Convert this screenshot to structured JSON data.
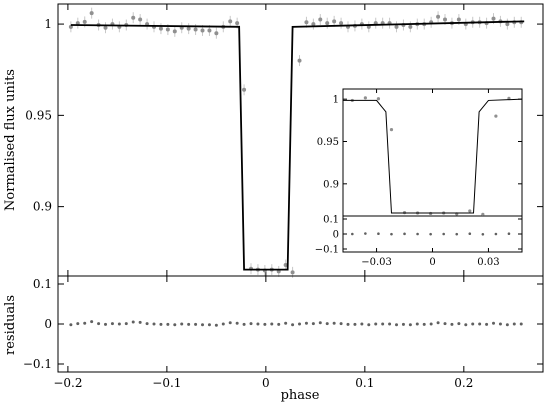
{
  "chart_data": [
    {
      "id": "main",
      "type": "scatter",
      "ylabel": "Normalised flux units",
      "xlim": [
        -0.21,
        0.28
      ],
      "ylim": [
        0.862,
        1.011
      ],
      "xticks": [
        -0.2,
        -0.1,
        0,
        0.1,
        0.2
      ],
      "yticks": [
        {
          "value": 0.9,
          "label": "0.9"
        },
        {
          "value": 0.95,
          "label": "0.95"
        },
        {
          "value": 1,
          "label": "1"
        }
      ],
      "model": {
        "x": [
          -0.197,
          -0.027,
          -0.022,
          0.022,
          0.027,
          0.261
        ],
        "flux": [
          0.9995,
          0.9985,
          0.8655,
          0.8655,
          0.9985,
          1.0015
        ]
      },
      "points": {
        "x": [
          -0.197,
          -0.19,
          -0.183,
          -0.176,
          -0.169,
          -0.162,
          -0.155,
          -0.148,
          -0.141,
          -0.134,
          -0.127,
          -0.12,
          -0.113,
          -0.106,
          -0.099,
          -0.092,
          -0.085,
          -0.078,
          -0.071,
          -0.064,
          -0.057,
          -0.05,
          -0.043,
          -0.036,
          -0.029,
          -0.022,
          -0.015,
          -0.008,
          -0.001,
          0.006,
          0.013,
          0.02,
          0.027,
          0.034,
          0.041,
          0.048,
          0.055,
          0.062,
          0.069,
          0.076,
          0.083,
          0.09,
          0.097,
          0.104,
          0.111,
          0.118,
          0.125,
          0.132,
          0.139,
          0.146,
          0.153,
          0.16,
          0.167,
          0.174,
          0.181,
          0.188,
          0.195,
          0.202,
          0.209,
          0.216,
          0.223,
          0.23,
          0.237,
          0.244,
          0.251,
          0.258
        ],
        "flux": [
          0.9985,
          1.0005,
          1.0012,
          1.006,
          0.9995,
          0.998,
          1.0,
          0.9985,
          0.9995,
          1.0035,
          1.0025,
          1.0,
          0.9985,
          0.9975,
          0.997,
          0.996,
          0.998,
          0.9975,
          0.997,
          0.9965,
          0.9965,
          0.995,
          0.9985,
          1.0015,
          1.0005,
          0.964,
          0.866,
          0.8655,
          0.865,
          0.8655,
          0.8645,
          0.868,
          0.864,
          0.98,
          1.001,
          1.0,
          1.0025,
          1.0005,
          1.0015,
          1.0005,
          0.9985,
          0.999,
          1.0,
          0.9985,
          1.0005,
          1.0005,
          1.0005,
          0.9985,
          0.9995,
          0.9985,
          1.0,
          1.0,
          1.001,
          1.004,
          1.0025,
          1.0005,
          1.0025,
          1.0,
          1.001,
          1.001,
          1.0005,
          1.003,
          1.0015,
          1.0,
          1.001,
          1.001
        ],
        "err": 0.003
      }
    },
    {
      "id": "residuals",
      "type": "scatter",
      "xlabel": "phase",
      "ylabel": "residuals",
      "xlim": [
        -0.21,
        0.28
      ],
      "ylim": [
        -0.12,
        0.12
      ],
      "xticks": [
        {
          "value": -0.2,
          "label": "−0.2"
        },
        {
          "value": -0.1,
          "label": "−0.1"
        },
        {
          "value": 0,
          "label": "0"
        },
        {
          "value": 0.1,
          "label": "0.1"
        },
        {
          "value": 0.2,
          "label": "0.2"
        }
      ],
      "yticks": [
        {
          "value": -0.1,
          "label": "−0.1"
        },
        {
          "value": 0,
          "label": "0"
        },
        {
          "value": 0.1,
          "label": "0.1"
        }
      ],
      "points": {
        "x": [
          -0.197,
          -0.19,
          -0.183,
          -0.176,
          -0.169,
          -0.162,
          -0.155,
          -0.148,
          -0.141,
          -0.134,
          -0.127,
          -0.12,
          -0.113,
          -0.106,
          -0.099,
          -0.092,
          -0.085,
          -0.078,
          -0.071,
          -0.064,
          -0.057,
          -0.05,
          -0.043,
          -0.036,
          -0.029,
          -0.022,
          -0.015,
          -0.008,
          -0.001,
          0.006,
          0.013,
          0.02,
          0.027,
          0.034,
          0.041,
          0.048,
          0.055,
          0.062,
          0.069,
          0.076,
          0.083,
          0.09,
          0.097,
          0.104,
          0.111,
          0.118,
          0.125,
          0.132,
          0.139,
          0.146,
          0.153,
          0.16,
          0.167,
          0.174,
          0.181,
          0.188,
          0.195,
          0.202,
          0.209,
          0.216,
          0.223,
          0.23,
          0.237,
          0.244,
          0.251,
          0.258
        ],
        "resid": [
          -0.002,
          0.001,
          0.002,
          0.006,
          0.001,
          -0.001,
          0.001,
          0.0,
          0.001,
          0.005,
          0.004,
          0.001,
          0.0,
          -0.001,
          -0.001,
          -0.002,
          0.0,
          -0.001,
          -0.001,
          -0.002,
          -0.002,
          -0.003,
          0.0,
          0.003,
          0.002,
          -0.001,
          0.001,
          0.0,
          -0.001,
          0.0,
          -0.001,
          0.002,
          -0.002,
          0.0,
          0.002,
          0.001,
          0.003,
          0.001,
          0.002,
          0.001,
          -0.001,
          -0.001,
          0.0,
          -0.002,
          0.0,
          0.0,
          0.0,
          -0.002,
          -0.001,
          -0.002,
          0.0,
          -0.001,
          0.0,
          0.003,
          0.001,
          -0.001,
          0.001,
          -0.002,
          0.0,
          0.0,
          -0.001,
          0.002,
          0.0,
          -0.002,
          0.0,
          0.0
        ]
      }
    },
    {
      "id": "inset",
      "type": "scatter",
      "xlim": [
        -0.048,
        0.048
      ],
      "ylim": [
        0.862,
        1.012
      ],
      "xticks": [
        {
          "value": -0.03,
          "label": "−0.03"
        },
        {
          "value": 0,
          "label": "0"
        },
        {
          "value": 0.03,
          "label": "0.03"
        }
      ],
      "yticks": [
        {
          "value": 0.9,
          "label": "0.9"
        },
        {
          "value": 0.95,
          "label": "0.95"
        },
        {
          "value": 1,
          "label": "1"
        }
      ],
      "model": {
        "x": [
          -0.048,
          -0.03,
          -0.025,
          -0.022,
          0.022,
          0.025,
          0.03,
          0.048
        ],
        "flux": [
          0.9985,
          0.9985,
          0.985,
          0.8655,
          0.8655,
          0.985,
          0.9985,
          1.0
        ]
      },
      "points": {
        "x": [
          -0.043,
          -0.036,
          -0.029,
          -0.022,
          -0.015,
          -0.008,
          -0.001,
          0.006,
          0.013,
          0.02,
          0.027,
          0.034,
          0.041
        ],
        "flux": [
          0.9985,
          1.0015,
          1.0005,
          0.964,
          0.866,
          0.8655,
          0.865,
          0.8655,
          0.8645,
          0.868,
          0.864,
          0.98,
          1.001
        ]
      },
      "resid_ylim": [
        -0.12,
        0.12
      ],
      "resid_yticks": [
        {
          "value": -0.1,
          "label": "−0.1"
        },
        {
          "value": 0,
          "label": "0"
        },
        {
          "value": 0.1,
          "label": "0.1"
        }
      ],
      "resid": [
        0.0,
        0.003,
        0.002,
        -0.001,
        0.001,
        0.0,
        -0.001,
        0.0,
        -0.001,
        0.002,
        -0.002,
        0.0,
        0.002
      ]
    }
  ]
}
